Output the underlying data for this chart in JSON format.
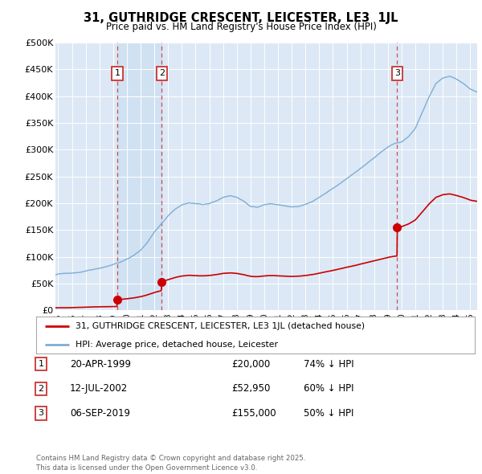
{
  "title": "31, GUTHRIDGE CRESCENT, LEICESTER, LE3  1JL",
  "subtitle": "Price paid vs. HM Land Registry's House Price Index (HPI)",
  "ylabel_ticks": [
    "£0",
    "£50K",
    "£100K",
    "£150K",
    "£200K",
    "£250K",
    "£300K",
    "£350K",
    "£400K",
    "£450K",
    "£500K"
  ],
  "ytick_values": [
    0,
    50000,
    100000,
    150000,
    200000,
    250000,
    300000,
    350000,
    400000,
    450000,
    500000
  ],
  "xlim_start": 1994.8,
  "xlim_end": 2025.5,
  "ylim_min": 0,
  "ylim_max": 500000,
  "hpi_color": "#7eadd4",
  "hpi_fill_color": "#c5d9ee",
  "price_color": "#cc0000",
  "vline_color": "#cc3333",
  "transaction_dates": [
    1999.3,
    2002.53,
    2019.68
  ],
  "transaction_prices": [
    20000,
    52950,
    155000
  ],
  "legend_label_price": "31, GUTHRIDGE CRESCENT, LEICESTER, LE3 1JL (detached house)",
  "legend_label_hpi": "HPI: Average price, detached house, Leicester",
  "table_rows": [
    [
      "1",
      "20-APR-1999",
      "£20,000",
      "74% ↓ HPI"
    ],
    [
      "2",
      "12-JUL-2002",
      "£52,950",
      "60% ↓ HPI"
    ],
    [
      "3",
      "06-SEP-2019",
      "£155,000",
      "50% ↓ HPI"
    ]
  ],
  "footnote": "Contains HM Land Registry data © Crown copyright and database right 2025.\nThis data is licensed under the Open Government Licence v3.0.",
  "background_color": "#dce8f5",
  "grid_color": "#ffffff"
}
